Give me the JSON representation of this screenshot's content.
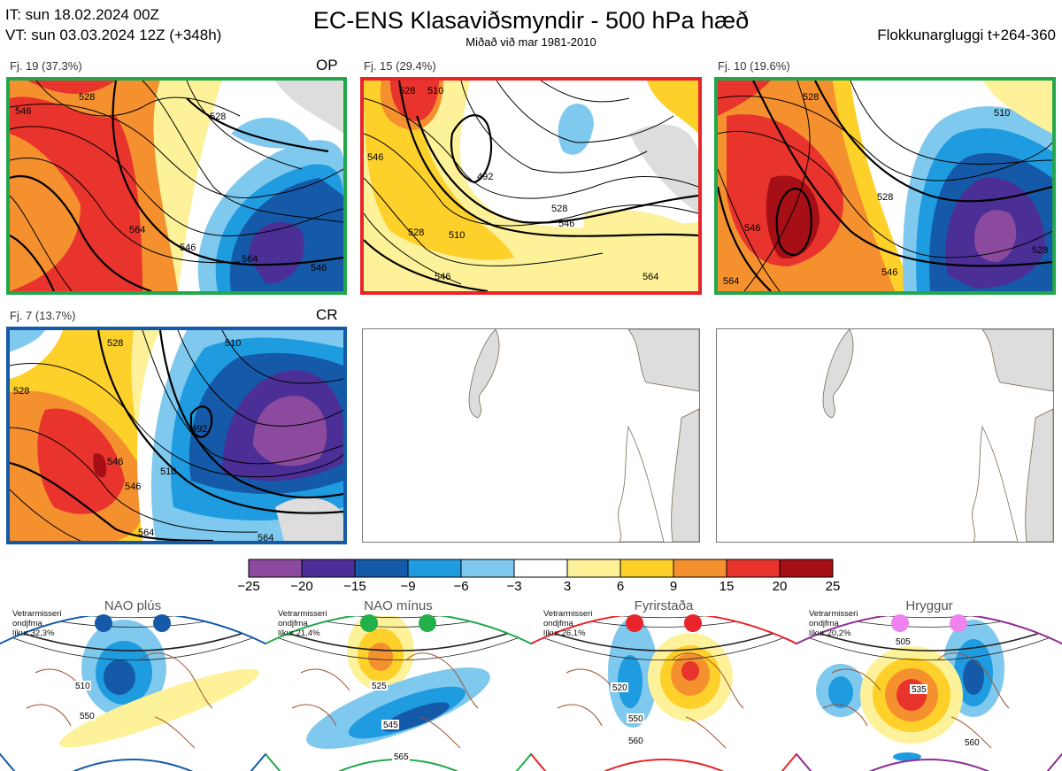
{
  "header": {
    "it_line": "IT: sun 18.02.2024 00Z",
    "vt_line": "VT: sun 03.03.2024 12Z  (+348h)",
    "title": "EC-ENS Klasaviðsmyndir - 500 hPa hæð",
    "subtitle": "Miðað við mar 1981-2010",
    "window": "Flokkunargluggi t+264-360"
  },
  "colors": {
    "scale": [
      "#8c4a9e",
      "#4b2f97",
      "#155aa8",
      "#1f9be0",
      "#7fc9ee",
      "#ffffff",
      "#fdf29a",
      "#fdd02a",
      "#f5902f",
      "#e8342c",
      "#a50f15"
    ],
    "border_green": "#22a84a",
    "border_red": "#e8252a",
    "border_blue": "#155aa8",
    "land": "#dddddd",
    "coast": "#7a6a55"
  },
  "clusters": [
    {
      "label": "Fj. 19 (37.3%)",
      "tag": "OP",
      "border": "green",
      "contours": [
        "528",
        "546",
        "564",
        "528",
        "546",
        "546",
        "564"
      ]
    },
    {
      "label": "Fj. 15 (29.4%)",
      "tag": "",
      "border": "red",
      "contours": [
        "528",
        "510",
        "492",
        "546",
        "528",
        "546",
        "510",
        "528",
        "546",
        "564"
      ]
    },
    {
      "label": "Fj. 10 (19.6%)",
      "tag": "",
      "border": "green",
      "contours": [
        "528",
        "546",
        "564",
        "528",
        "510",
        "528",
        "546"
      ]
    },
    {
      "label": "Fj. 7 (13.7%)",
      "tag": "CR",
      "border": "blue",
      "contours": [
        "528",
        "510",
        "528",
        "546",
        "564",
        "492",
        "510",
        "546",
        "564"
      ]
    }
  ],
  "colorbar": {
    "ticks": [
      "−25",
      "−20",
      "−15",
      "−9",
      "−6",
      "−3",
      "3",
      "6",
      "9",
      "15",
      "20",
      "25"
    ]
  },
  "regimes": [
    {
      "name": "NAO plús",
      "info": [
        "Vetrarmisseri",
        "ondjfma",
        "líkur 32,3%"
      ],
      "contours": [
        "510",
        "550"
      ],
      "dot_color": "#155aa8",
      "border": "#155aa8"
    },
    {
      "name": "NAO mínus",
      "info": [
        "Vetrarmisseri",
        "ondjfma",
        "líkur 21,4%"
      ],
      "contours": [
        "525",
        "545",
        "565"
      ],
      "dot_color": "#22b04a",
      "border": "#22a84a"
    },
    {
      "name": "Fyrirstaða",
      "info": [
        "Vetrarmisseri",
        "ondjfma",
        "líkur 26,1%"
      ],
      "contours": [
        "520",
        "550",
        "560"
      ],
      "dot_color": "#e8252a",
      "border": "#e8252a"
    },
    {
      "name": "Hryggur",
      "info": [
        "Vetrarmisseri",
        "ondjfma",
        "líkur 20,2%"
      ],
      "contours": [
        "505",
        "535",
        "560"
      ],
      "dot_color": "#ee82ee",
      "border": "#8e2e96"
    }
  ]
}
